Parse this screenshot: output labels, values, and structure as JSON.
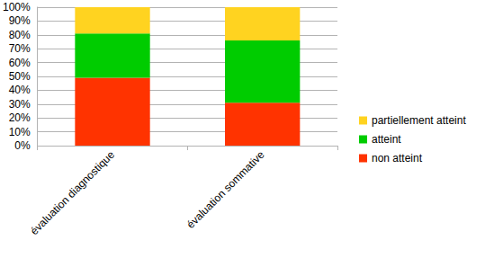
{
  "chart_data": {
    "type": "bar",
    "stacked": true,
    "grid": true,
    "legend": "right",
    "categories": [
      "évaluation diagnostique",
      "évaluation sommative"
    ],
    "series": [
      {
        "name": "non atteint",
        "color": "#ff3300",
        "values": [
          49,
          31
        ]
      },
      {
        "name": "atteint",
        "color": "#00cc00",
        "values": [
          32,
          45
        ]
      },
      {
        "name": "partiellement atteint",
        "color": "#ffd320",
        "values": [
          19,
          24
        ]
      }
    ],
    "ylim": [
      0,
      100
    ],
    "yticks": [
      {
        "value": 0,
        "label": "0%"
      },
      {
        "value": 10,
        "label": "10%"
      },
      {
        "value": 20,
        "label": "20%"
      },
      {
        "value": 30,
        "label": "30%"
      },
      {
        "value": 40,
        "label": "40%"
      },
      {
        "value": 50,
        "label": "50%"
      },
      {
        "value": 60,
        "label": "60%"
      },
      {
        "value": 70,
        "label": "70%"
      },
      {
        "value": 80,
        "label": "80%"
      },
      {
        "value": 90,
        "label": "90%"
      },
      {
        "value": 100,
        "label": "100%"
      }
    ]
  }
}
